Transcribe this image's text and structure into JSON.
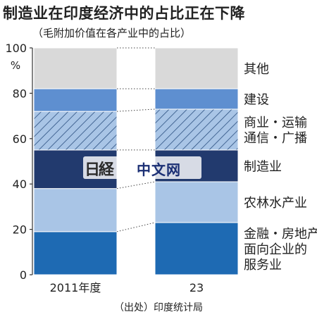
{
  "header": {
    "title": "制造业在印度经济中的占比正在下降",
    "subtitle": "（毛附加价值在各产业中的占比）"
  },
  "source": "（出处）印度统计局",
  "watermark": {
    "logo_text": "日経",
    "site_text": "中文网"
  },
  "chart_data": {
    "type": "bar",
    "stacked": true,
    "categories": [
      "2011年度",
      "23"
    ],
    "yunit": "%",
    "ylim": [
      0,
      100
    ],
    "yticks": [
      0,
      20,
      40,
      60,
      80,
      100
    ],
    "connectors": "dotted",
    "series": [
      {
        "name": "金融・房地产面向企业的服务业",
        "label_lines": [
          "金融・房地产",
          "面向企业的",
          "服务业"
        ],
        "values": [
          19,
          23
        ],
        "color": "#1e6ab3",
        "pattern": "solid"
      },
      {
        "name": "农林水产业",
        "label_lines": [
          "农林水产业"
        ],
        "values": [
          19,
          18
        ],
        "color": "#a9c5e6",
        "pattern": "solid"
      },
      {
        "name": "制造业",
        "label_lines": [
          "制造业"
        ],
        "values": [
          17,
          14
        ],
        "color": "#223a6e",
        "pattern": "solid"
      },
      {
        "name": "商业・运输通信・广播",
        "label_lines": [
          "商业・运输",
          "通信・广播"
        ],
        "values": [
          17,
          18
        ],
        "color": "#a9c5e6",
        "pattern": "hatch"
      },
      {
        "name": "建设",
        "label_lines": [
          "建设"
        ],
        "values": [
          10,
          9
        ],
        "color": "#5e8fd0",
        "pattern": "solid"
      },
      {
        "name": "其他",
        "label_lines": [
          "其他"
        ],
        "values": [
          18,
          18
        ],
        "color": "#d9d9d9",
        "pattern": "solid"
      }
    ]
  }
}
